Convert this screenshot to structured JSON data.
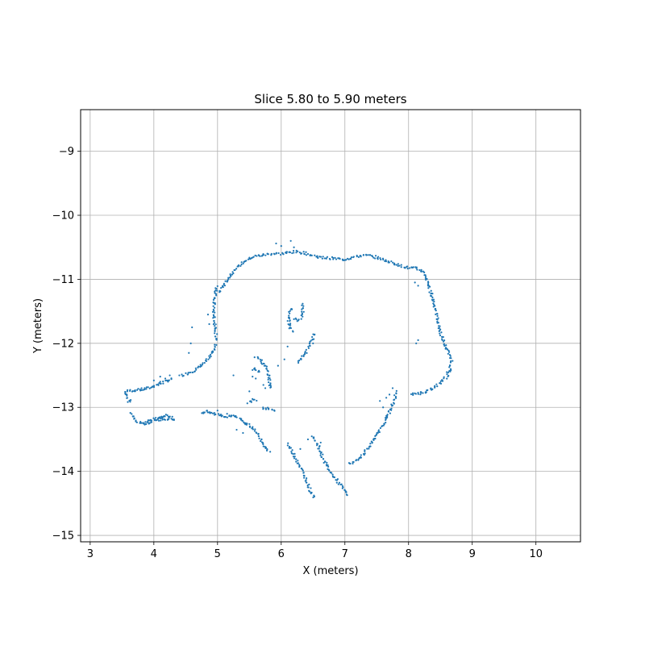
{
  "chart_data": {
    "type": "scatter",
    "title": "Slice 5.80 to 5.90 meters",
    "xlabel": "X (meters)",
    "ylabel": "Y (meters)",
    "xlim": [
      2.85,
      10.7
    ],
    "ylim": [
      -15.1,
      -8.35
    ],
    "xticks": [
      3,
      4,
      5,
      6,
      7,
      8,
      9,
      10
    ],
    "xtick_labels": [
      "3",
      "4",
      "5",
      "6",
      "7",
      "8",
      "9",
      "10"
    ],
    "yticks": [
      -15,
      -14,
      -13,
      -12,
      -11,
      -10,
      -9
    ],
    "ytick_labels": [
      "−15",
      "−14",
      "−13",
      "−12",
      "−11",
      "−10",
      "−9"
    ],
    "grid": true,
    "point_color": "#1f77b4",
    "segments": [
      [
        [
          3.55,
          -12.76
        ],
        [
          3.62,
          -12.74
        ],
        [
          3.72,
          -12.73
        ],
        [
          3.82,
          -12.72
        ],
        [
          3.92,
          -12.7
        ],
        [
          4.02,
          -12.66
        ],
        [
          4.12,
          -12.62
        ],
        [
          4.22,
          -12.58
        ],
        [
          4.3,
          -12.56
        ]
      ],
      [
        [
          3.57,
          -12.78
        ],
        [
          3.58,
          -12.85
        ],
        [
          3.62,
          -12.92
        ],
        [
          3.64,
          -12.88
        ]
      ],
      [
        [
          4.45,
          -12.5
        ],
        [
          4.55,
          -12.46
        ],
        [
          4.65,
          -12.42
        ],
        [
          4.75,
          -12.35
        ],
        [
          4.85,
          -12.25
        ],
        [
          4.93,
          -12.12
        ],
        [
          4.98,
          -12.0
        ]
      ],
      [
        [
          4.98,
          -11.95
        ],
        [
          4.97,
          -11.8
        ],
        [
          4.95,
          -11.65
        ],
        [
          4.94,
          -11.5
        ],
        [
          4.95,
          -11.35
        ],
        [
          4.97,
          -11.2
        ],
        [
          4.99,
          -11.1
        ]
      ],
      [
        [
          5.03,
          -11.2
        ],
        [
          5.08,
          -11.12
        ],
        [
          5.15,
          -11.02
        ],
        [
          5.22,
          -10.92
        ],
        [
          5.3,
          -10.82
        ],
        [
          5.4,
          -10.74
        ],
        [
          5.5,
          -10.68
        ],
        [
          5.6,
          -10.64
        ],
        [
          5.72,
          -10.62
        ],
        [
          5.85,
          -10.6
        ],
        [
          6.0,
          -10.6
        ]
      ],
      [
        [
          6.0,
          -10.6
        ],
        [
          6.12,
          -10.58
        ],
        [
          6.25,
          -10.57
        ],
        [
          6.38,
          -10.59
        ],
        [
          6.5,
          -10.63
        ],
        [
          6.62,
          -10.66
        ],
        [
          6.75,
          -10.67
        ],
        [
          6.88,
          -10.68
        ],
        [
          7.0,
          -10.69
        ]
      ],
      [
        [
          7.0,
          -10.69
        ],
        [
          7.12,
          -10.66
        ],
        [
          7.25,
          -10.63
        ],
        [
          7.38,
          -10.63
        ],
        [
          7.5,
          -10.66
        ],
        [
          7.62,
          -10.7
        ],
        [
          7.75,
          -10.74
        ],
        [
          7.88,
          -10.79
        ],
        [
          8.0,
          -10.82
        ],
        [
          8.12,
          -10.83
        ],
        [
          8.22,
          -10.87
        ]
      ],
      [
        [
          8.22,
          -10.87
        ],
        [
          8.28,
          -11.0
        ],
        [
          8.33,
          -11.15
        ],
        [
          8.38,
          -11.3
        ],
        [
          8.42,
          -11.45
        ],
        [
          8.45,
          -11.6
        ],
        [
          8.48,
          -11.75
        ],
        [
          8.52,
          -11.9
        ],
        [
          8.58,
          -12.05
        ],
        [
          8.64,
          -12.18
        ],
        [
          8.68,
          -12.25
        ]
      ],
      [
        [
          8.68,
          -12.28
        ],
        [
          8.65,
          -12.4
        ],
        [
          8.6,
          -12.52
        ],
        [
          8.5,
          -12.62
        ],
        [
          8.38,
          -12.7
        ],
        [
          8.25,
          -12.76
        ],
        [
          8.1,
          -12.8
        ],
        [
          8.02,
          -12.78
        ]
      ],
      [
        [
          7.8,
          -12.75
        ],
        [
          7.78,
          -12.88
        ],
        [
          7.72,
          -13.02
        ],
        [
          7.65,
          -13.18
        ],
        [
          7.55,
          -13.34
        ],
        [
          7.45,
          -13.5
        ],
        [
          7.35,
          -13.65
        ],
        [
          7.25,
          -13.78
        ],
        [
          7.15,
          -13.86
        ],
        [
          7.05,
          -13.88
        ]
      ],
      [
        [
          3.65,
          -13.1
        ],
        [
          3.72,
          -13.2
        ],
        [
          3.82,
          -13.25
        ],
        [
          3.92,
          -13.24
        ],
        [
          4.05,
          -13.2
        ],
        [
          4.15,
          -13.18
        ],
        [
          4.25,
          -13.17
        ],
        [
          4.35,
          -13.2
        ]
      ],
      [
        [
          3.85,
          -13.26
        ],
        [
          3.95,
          -13.2
        ],
        [
          4.08,
          -13.15
        ],
        [
          4.2,
          -13.13
        ],
        [
          4.3,
          -13.15
        ]
      ],
      [
        [
          4.75,
          -13.08
        ],
        [
          4.85,
          -13.07
        ],
        [
          4.95,
          -13.1
        ],
        [
          5.05,
          -13.12
        ],
        [
          5.15,
          -13.15
        ],
        [
          5.25,
          -13.12
        ],
        [
          5.35,
          -13.18
        ],
        [
          5.45,
          -13.25
        ],
        [
          5.55,
          -13.32
        ],
        [
          5.62,
          -13.4
        ],
        [
          5.68,
          -13.5
        ],
        [
          5.75,
          -13.62
        ],
        [
          5.82,
          -13.7
        ]
      ],
      [
        [
          5.6,
          -12.2
        ],
        [
          5.68,
          -12.28
        ],
        [
          5.75,
          -12.36
        ],
        [
          5.8,
          -12.48
        ],
        [
          5.82,
          -12.6
        ],
        [
          5.83,
          -12.72
        ]
      ],
      [
        [
          5.55,
          -12.4
        ],
        [
          5.62,
          -12.42
        ],
        [
          5.68,
          -12.45
        ]
      ],
      [
        [
          5.48,
          -12.92
        ],
        [
          5.55,
          -12.88
        ],
        [
          5.62,
          -12.9
        ]
      ],
      [
        [
          5.7,
          -13.0
        ],
        [
          5.78,
          -13.02
        ],
        [
          5.86,
          -13.03
        ],
        [
          5.92,
          -13.05
        ]
      ],
      [
        [
          6.33,
          -11.4
        ],
        [
          6.34,
          -11.5
        ],
        [
          6.33,
          -11.58
        ],
        [
          6.28,
          -11.64
        ],
        [
          6.2,
          -11.62
        ]
      ],
      [
        [
          6.15,
          -11.45
        ],
        [
          6.12,
          -11.6
        ],
        [
          6.14,
          -11.75
        ],
        [
          6.2,
          -11.82
        ]
      ],
      [
        [
          6.52,
          -11.85
        ],
        [
          6.48,
          -11.95
        ],
        [
          6.43,
          -12.05
        ],
        [
          6.38,
          -12.15
        ],
        [
          6.3,
          -12.25
        ],
        [
          6.25,
          -12.3
        ]
      ],
      [
        [
          6.1,
          -13.58
        ],
        [
          6.18,
          -13.7
        ],
        [
          6.26,
          -13.85
        ],
        [
          6.33,
          -14.0
        ],
        [
          6.4,
          -14.15
        ],
        [
          6.46,
          -14.3
        ],
        [
          6.52,
          -14.42
        ]
      ],
      [
        [
          6.5,
          -13.45
        ],
        [
          6.58,
          -13.6
        ],
        [
          6.65,
          -13.78
        ],
        [
          6.72,
          -13.92
        ],
        [
          6.8,
          -14.05
        ],
        [
          6.88,
          -14.15
        ],
        [
          6.96,
          -14.25
        ],
        [
          7.05,
          -14.38
        ]
      ]
    ],
    "points": [
      [
        4.25,
        -12.5
      ],
      [
        4.18,
        -12.55
      ],
      [
        4.1,
        -12.6
      ],
      [
        4.4,
        -12.5
      ],
      [
        4.85,
        -11.55
      ],
      [
        4.87,
        -11.7
      ],
      [
        4.6,
        -11.75
      ],
      [
        4.58,
        -12.0
      ],
      [
        4.55,
        -12.15
      ],
      [
        6.1,
        -12.05
      ],
      [
        6.05,
        -12.25
      ],
      [
        5.95,
        -12.35
      ],
      [
        5.55,
        -12.52
      ],
      [
        5.6,
        -12.55
      ],
      [
        5.72,
        -12.65
      ],
      [
        5.75,
        -12.7
      ],
      [
        5.5,
        -12.75
      ],
      [
        5.3,
        -13.35
      ],
      [
        5.4,
        -13.4
      ],
      [
        5.25,
        -12.5
      ],
      [
        6.0,
        -10.48
      ],
      [
        5.92,
        -10.44
      ],
      [
        6.15,
        -10.4
      ],
      [
        6.2,
        -10.5
      ],
      [
        8.15,
        -11.95
      ],
      [
        8.12,
        -12.0
      ],
      [
        7.75,
        -12.7
      ],
      [
        7.7,
        -12.8
      ],
      [
        7.65,
        -12.85
      ],
      [
        7.55,
        -12.9
      ],
      [
        7.6,
        -13.0
      ],
      [
        8.65,
        -12.35
      ],
      [
        8.6,
        -12.45
      ],
      [
        8.1,
        -11.05
      ],
      [
        8.15,
        -11.1
      ],
      [
        6.1,
        -11.65
      ],
      [
        6.5,
        -12.0
      ],
      [
        6.42,
        -13.5
      ],
      [
        6.62,
        -13.55
      ],
      [
        6.3,
        -13.65
      ],
      [
        4.1,
        -12.52
      ],
      [
        4.0,
        -12.58
      ],
      [
        5.15,
        -13.1
      ],
      [
        5.0,
        -13.05
      ]
    ]
  }
}
